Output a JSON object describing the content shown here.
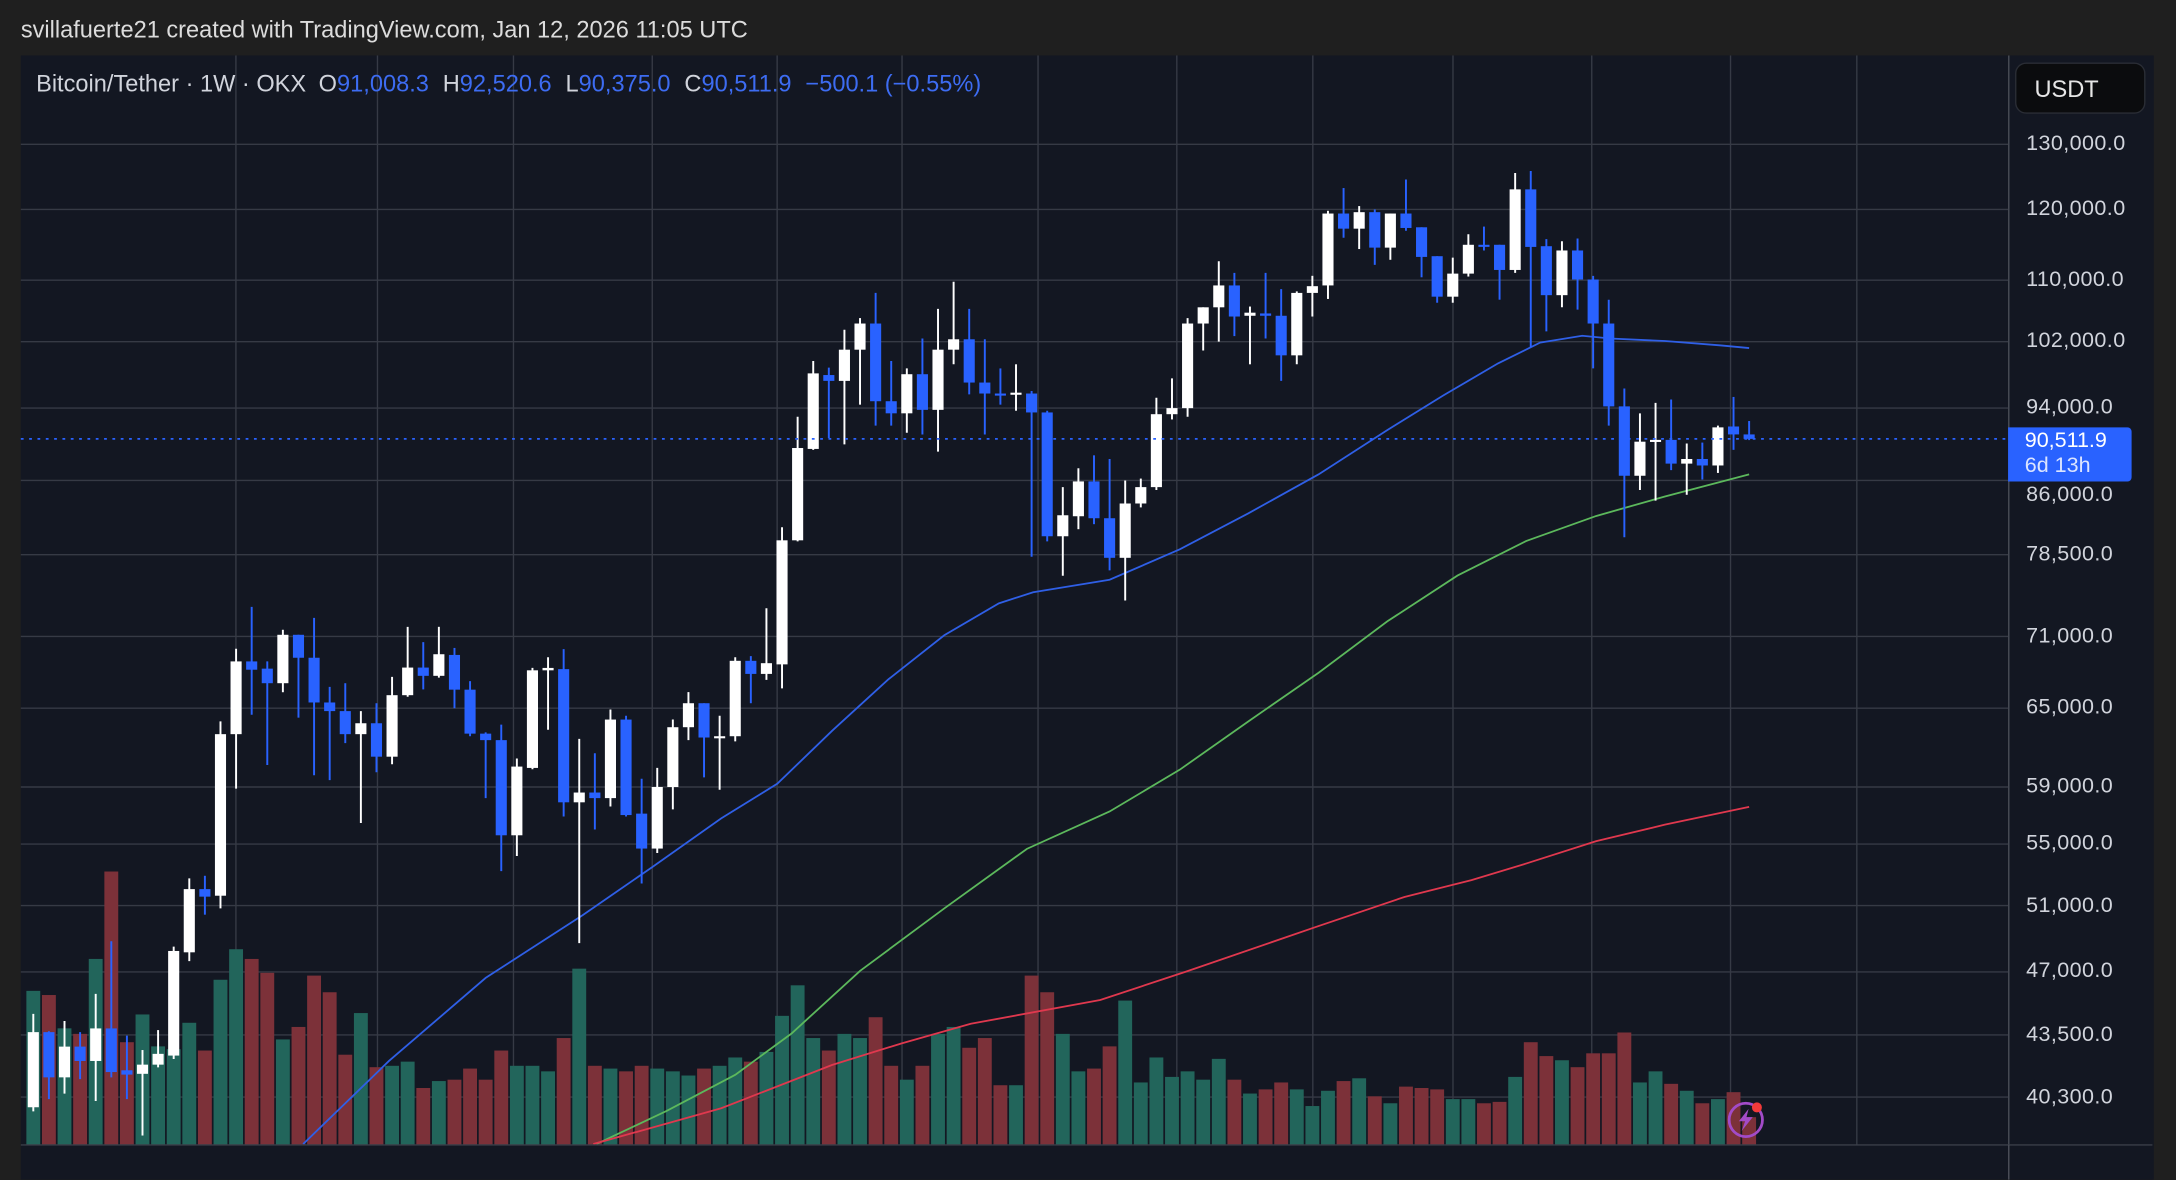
{
  "header": {
    "attribution": "svillafuerte21 created with TradingView.com, Jan 12, 2026 11:05 UTC"
  },
  "legend": {
    "symbol": "Bitcoin/Tether · 1W · OKX",
    "open_label": "O",
    "open": "91,008.3",
    "high_label": "H",
    "high": "92,520.6",
    "low_label": "L",
    "low": "90,375.0",
    "close_label": "C",
    "close": "90,511.9",
    "change": "−500.1 (−0.55%)"
  },
  "currency_button": "USDT",
  "price_tag": {
    "price": "90,511.9",
    "countdown": "6d 13h"
  },
  "icons": {
    "bottom_right": "lightning-bolt-icon"
  },
  "colors": {
    "up": "#ffffff",
    "down": "#2962ff",
    "vol_up": "#22655b",
    "vol_down": "#7c3139",
    "ma_blue": "#2f5fe6",
    "ma_green": "#5cb85c",
    "ma_red": "#e0384e",
    "grid": "#363a45"
  },
  "chart_data": {
    "type": "candlestick",
    "interval": "1W",
    "y_scale": "log",
    "ylim": [
      38000,
      145000
    ],
    "grid": true,
    "y_ticks": [
      130000,
      120000,
      110000,
      102000,
      94000,
      86000,
      78500,
      71000,
      65000,
      59000,
      55000,
      51000,
      47000,
      43500,
      40300
    ],
    "y_tick_labels": [
      "130,000.0",
      "120,000.0",
      "110,000.0",
      "102,000.0",
      "94,000.0",
      "86,000.0",
      "78,500.0",
      "71,000.0",
      "65,000.0",
      "59,000.0",
      "55,000.0",
      "51,000.0",
      "47,000.0",
      "43,500.0",
      "40,300.0"
    ],
    "last_price": 90511.9,
    "ohlc_order": [
      "open",
      "high",
      "low",
      "close"
    ],
    "candles": [
      [
        39800,
        44640,
        39600,
        43650
      ],
      [
        43650,
        43700,
        40200,
        41290
      ],
      [
        41290,
        44250,
        40470,
        42880
      ],
      [
        42880,
        43650,
        41200,
        42130
      ],
      [
        42130,
        45750,
        40110,
        43850
      ],
      [
        43850,
        48810,
        41290,
        41560
      ],
      [
        41650,
        43460,
        40200,
        41430
      ],
      [
        41470,
        42700,
        38440,
        41940
      ],
      [
        41940,
        43760,
        41800,
        42500
      ],
      [
        42410,
        48490,
        42230,
        48230
      ],
      [
        48150,
        52730,
        47630,
        52040
      ],
      [
        52040,
        52900,
        50430,
        51560
      ],
      [
        51620,
        63960,
        50820,
        62960
      ],
      [
        62960,
        69930,
        58880,
        68850
      ],
      [
        68850,
        73620,
        64480,
        68150
      ],
      [
        68240,
        68850,
        60620,
        67030
      ],
      [
        67030,
        71580,
        66290,
        71140
      ],
      [
        71140,
        71140,
        64250,
        69160
      ],
      [
        69160,
        72640,
        59860,
        65460
      ],
      [
        65460,
        66730,
        59500,
        64770
      ],
      [
        64770,
        67030,
        62270,
        62960
      ],
      [
        62960,
        64770,
        56450,
        63810
      ],
      [
        63810,
        65400,
        60080,
        61240
      ],
      [
        61240,
        67550,
        60670,
        66050
      ],
      [
        66050,
        71840,
        65920,
        68330
      ],
      [
        68330,
        70500,
        66520,
        67640
      ],
      [
        67640,
        71840,
        67490,
        69460
      ],
      [
        69400,
        70000,
        65000,
        66500
      ],
      [
        66500,
        67200,
        62800,
        63000
      ],
      [
        63000,
        63100,
        58200,
        62500
      ],
      [
        62500,
        63700,
        53200,
        55600
      ],
      [
        55600,
        61100,
        54200,
        60500
      ],
      [
        60400,
        68300,
        60300,
        68100
      ],
      [
        68100,
        69200,
        63300,
        68300
      ],
      [
        68200,
        69900,
        56900,
        57900
      ],
      [
        57900,
        62600,
        48700,
        58600
      ],
      [
        58600,
        61500,
        56000,
        58200
      ],
      [
        58200,
        64900,
        57600,
        64100
      ],
      [
        64100,
        64400,
        56900,
        57000
      ],
      [
        57100,
        59600,
        52400,
        54700
      ],
      [
        54700,
        60400,
        54400,
        59000
      ],
      [
        59000,
        64100,
        57400,
        63500
      ],
      [
        63500,
        66300,
        62500,
        65400
      ],
      [
        65400,
        65400,
        59700,
        62700
      ],
      [
        62700,
        64400,
        58800,
        62800
      ],
      [
        62800,
        69200,
        62400,
        68900
      ],
      [
        68900,
        69300,
        65400,
        67800
      ],
      [
        67800,
        73500,
        67300,
        68700
      ],
      [
        68600,
        81200,
        66600,
        79900
      ],
      [
        79900,
        93000,
        79800,
        89500
      ],
      [
        89400,
        99600,
        89300,
        98100
      ],
      [
        97900,
        98800,
        90600,
        97200
      ],
      [
        97200,
        103500,
        89900,
        101000
      ],
      [
        101000,
        105000,
        94400,
        104300
      ],
      [
        104300,
        108300,
        92000,
        94800
      ],
      [
        94800,
        99600,
        92000,
        93400
      ],
      [
        93400,
        98700,
        91200,
        98000
      ],
      [
        98000,
        102400,
        91000,
        93800
      ],
      [
        93800,
        106200,
        89100,
        101000
      ],
      [
        101000,
        109800,
        99200,
        102300
      ],
      [
        102300,
        106200,
        95600,
        97000
      ],
      [
        97000,
        102300,
        91000,
        95700
      ],
      [
        95700,
        98700,
        94400,
        95500
      ],
      [
        95600,
        99200,
        93700,
        95800
      ],
      [
        95700,
        96000,
        78300,
        93500
      ],
      [
        93500,
        93700,
        79800,
        80300
      ],
      [
        80300,
        85300,
        76500,
        82400
      ],
      [
        82300,
        87300,
        81000,
        85900
      ],
      [
        85900,
        88700,
        81500,
        82100
      ],
      [
        82100,
        88300,
        77000,
        78200
      ],
      [
        78200,
        86000,
        74200,
        83600
      ],
      [
        83600,
        86200,
        83200,
        85300
      ],
      [
        85300,
        95200,
        85000,
        93300
      ],
      [
        93300,
        97500,
        92700,
        94000
      ],
      [
        94000,
        105000,
        93000,
        104300
      ],
      [
        104300,
        106400,
        100900,
        106400
      ],
      [
        106400,
        112600,
        102000,
        109300
      ],
      [
        109300,
        111000,
        102700,
        105200
      ],
      [
        105300,
        106500,
        99200,
        105700
      ],
      [
        105600,
        111000,
        102400,
        105300
      ],
      [
        105300,
        108800,
        97200,
        100300
      ],
      [
        100300,
        108500,
        99200,
        108300
      ],
      [
        108300,
        110600,
        105200,
        109200
      ],
      [
        109300,
        119800,
        107500,
        119400
      ],
      [
        119400,
        123200,
        115900,
        117200
      ],
      [
        117200,
        120500,
        114300,
        119600
      ],
      [
        119600,
        120000,
        112100,
        114500
      ],
      [
        114500,
        119400,
        112800,
        119400
      ],
      [
        119400,
        124500,
        116900,
        117300
      ],
      [
        117400,
        117400,
        110400,
        113200
      ],
      [
        113300,
        113300,
        107000,
        107800
      ],
      [
        107800,
        113100,
        107000,
        110900
      ],
      [
        110900,
        116400,
        110500,
        114900
      ],
      [
        114900,
        117500,
        114100,
        114700
      ],
      [
        114900,
        114900,
        107400,
        111400
      ],
      [
        111400,
        125500,
        111000,
        123000
      ],
      [
        123000,
        125800,
        101300,
        114600
      ],
      [
        114700,
        115700,
        103300,
        108000
      ],
      [
        108000,
        115400,
        106400,
        114100
      ],
      [
        114100,
        115800,
        106100,
        110100
      ],
      [
        110100,
        110600,
        98700,
        104300
      ],
      [
        104300,
        107400,
        92000,
        94200
      ],
      [
        94200,
        96300,
        80200,
        86500
      ],
      [
        86500,
        93400,
        85000,
        90200
      ],
      [
        90200,
        94600,
        83900,
        90400
      ],
      [
        90400,
        95000,
        87100,
        87800
      ],
      [
        87800,
        90000,
        84500,
        88300
      ],
      [
        88300,
        90100,
        86100,
        87600
      ],
      [
        87600,
        92000,
        86800,
        91800
      ],
      [
        91900,
        95300,
        89300,
        91008.3
      ],
      [
        91008.3,
        92520.6,
        90375,
        90511.9
      ]
    ],
    "volume_relative": [
      111,
      108,
      84,
      80,
      134,
      197,
      74,
      94,
      71,
      69,
      88,
      68,
      119,
      141,
      134,
      124,
      76,
      85,
      122,
      110,
      65,
      95,
      56,
      57,
      60,
      41,
      46,
      47,
      55,
      47,
      68,
      57,
      57,
      53,
      77,
      127,
      57,
      55,
      53,
      57,
      55,
      53,
      50,
      55,
      57,
      63,
      60,
      67,
      93,
      115,
      77,
      68,
      80,
      77,
      92,
      57,
      47,
      57,
      80,
      85,
      70,
      77,
      43,
      43,
      122,
      110,
      80,
      53,
      55,
      71,
      104,
      45,
      63,
      49,
      53,
      47,
      62,
      47,
      37,
      40,
      45,
      40,
      28,
      39,
      46,
      48,
      35,
      30,
      42,
      41,
      40,
      33,
      33,
      30,
      31,
      49,
      74,
      64,
      61,
      56,
      66,
      66,
      81,
      45,
      53,
      44,
      39,
      30,
      33,
      38,
      20
    ],
    "moving_averages": [
      {
        "color": "#2f5fe6",
        "points": [
          [
            18.3,
            38040
          ],
          [
            23.8,
            42130
          ],
          [
            30,
            46660
          ],
          [
            36.2,
            50390
          ],
          [
            40.7,
            53480
          ],
          [
            45.1,
            56770
          ],
          [
            48.7,
            59240
          ],
          [
            52.2,
            63210
          ],
          [
            55.8,
            67330
          ],
          [
            59.4,
            71100
          ],
          [
            62.9,
            73940
          ],
          [
            65.1,
            74960
          ],
          [
            70,
            76120
          ],
          [
            74.5,
            79020
          ],
          [
            78.9,
            82600
          ],
          [
            83.4,
            86650
          ],
          [
            87.8,
            91490
          ],
          [
            91.4,
            95480
          ],
          [
            94.9,
            99310
          ],
          [
            97.6,
            101880
          ],
          [
            100.3,
            102740
          ],
          [
            102.1,
            102400
          ],
          [
            105.6,
            102080
          ],
          [
            109.2,
            101530
          ],
          [
            111,
            101200
          ]
        ]
      },
      {
        "color": "#5cb85c",
        "points": [
          [
            37.1,
            38040
          ],
          [
            41.6,
            39620
          ],
          [
            46,
            41420
          ],
          [
            49.6,
            43570
          ],
          [
            54,
            47060
          ],
          [
            59.4,
            50820
          ],
          [
            64.7,
            54680
          ],
          [
            70,
            57250
          ],
          [
            74.5,
            60270
          ],
          [
            78.9,
            63960
          ],
          [
            83.4,
            67900
          ],
          [
            87.8,
            72320
          ],
          [
            92.3,
            76510
          ],
          [
            96.7,
            79830
          ],
          [
            101.2,
            82330
          ],
          [
            105.6,
            84320
          ],
          [
            111,
            86650
          ]
        ]
      },
      {
        "color": "#e0384e",
        "points": [
          [
            36.9,
            38040
          ],
          [
            45.1,
            39750
          ],
          [
            52.2,
            41920
          ],
          [
            56.7,
            43060
          ],
          [
            61.1,
            44100
          ],
          [
            69.4,
            45410
          ],
          [
            74.9,
            47020
          ],
          [
            83.3,
            49700
          ],
          [
            88.9,
            51540
          ],
          [
            93.2,
            52620
          ],
          [
            96.7,
            53700
          ],
          [
            101.2,
            55200
          ],
          [
            105.6,
            56330
          ],
          [
            111,
            57580
          ]
        ]
      }
    ]
  }
}
